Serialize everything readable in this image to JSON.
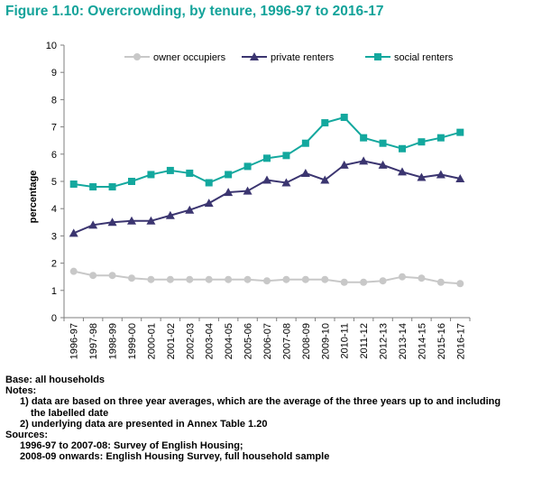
{
  "title": "Figure 1.10: Overcrowding, by tenure, 1996-97 to 2016-17",
  "chart_data": {
    "type": "line",
    "title": "Figure 1.10: Overcrowding, by tenure, 1996-97 to 2016-17",
    "xlabel": "",
    "ylabel": "percentage",
    "ylim": [
      0,
      10
    ],
    "yticks": [
      0,
      1,
      2,
      3,
      4,
      5,
      6,
      7,
      8,
      9,
      10
    ],
    "grid": false,
    "legend_position": "top",
    "categories": [
      "1996-97",
      "1997-98",
      "1998-99",
      "1999-00",
      "2000-01",
      "2001-02",
      "2002-03",
      "2003-04",
      "2004-05",
      "2005-06",
      "2006-07",
      "2007-08",
      "2008-09",
      "2009-10",
      "2010-11",
      "2011-12",
      "2012-13",
      "2013-14",
      "2014-15",
      "2015-16",
      "2016-17"
    ],
    "series": [
      {
        "name": "owner occupiers",
        "color": "#c8c8c8",
        "marker": "circle",
        "values": [
          1.7,
          1.55,
          1.55,
          1.45,
          1.4,
          1.4,
          1.4,
          1.4,
          1.4,
          1.4,
          1.35,
          1.4,
          1.4,
          1.4,
          1.3,
          1.3,
          1.35,
          1.5,
          1.45,
          1.3,
          1.25
        ]
      },
      {
        "name": "private renters",
        "color": "#3b3570",
        "marker": "triangle",
        "values": [
          3.1,
          3.4,
          3.5,
          3.55,
          3.55,
          3.75,
          3.95,
          4.2,
          4.6,
          4.65,
          5.05,
          4.95,
          5.3,
          5.05,
          5.6,
          5.75,
          5.6,
          5.35,
          5.15,
          5.25,
          5.1
        ]
      },
      {
        "name": "social renters",
        "color": "#13a89e",
        "marker": "square",
        "values": [
          4.9,
          4.8,
          4.8,
          5.0,
          5.25,
          5.4,
          5.3,
          4.95,
          5.25,
          5.55,
          5.85,
          5.95,
          6.4,
          7.15,
          7.35,
          6.6,
          6.4,
          6.2,
          6.45,
          6.6,
          6.8
        ]
      }
    ]
  },
  "notes": {
    "base": "Base: all households",
    "notes_heading": "Notes:",
    "note1_line1": "1) data are based on three year averages, which are the average of the three years up to and including",
    "note1_line2": "the labelled date",
    "note2": "2) underlying data are presented in Annex Table 1.20",
    "sources_heading": "Sources:",
    "source1": "1996-97 to 2007-08: Survey of English Housing;",
    "source2": "2008-09 onwards: English Housing Survey, full household sample"
  }
}
